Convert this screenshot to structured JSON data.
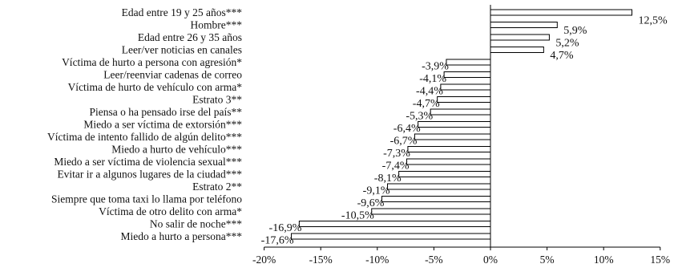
{
  "chart_data": {
    "type": "bar",
    "orientation": "horizontal",
    "categories": [
      "Edad entre 19 y 25 años***",
      "Hombre***",
      "Edad entre 26 y 35 años",
      "Leer/ver noticias en canales",
      "Víctima de hurto a persona con agresión*",
      "Leer/reenviar cadenas de correo",
      "Víctima de hurto de vehículo con arma*",
      "Estrato 3**",
      "Piensa o ha pensado irse del país**",
      "Miedo a ser víctima de extorsión***",
      "Víctima de intento fallido de algún delito***",
      "Miedo a hurto de vehículo***",
      "Miedo a ser víctima de violencia sexual***",
      "Evitar ir a algunos lugares de la ciudad***",
      "Estrato 2**",
      "Siempre que toma taxi lo llama por teléfono",
      "Víctima de otro delito con arma*",
      "No salir de noche***",
      "Miedo a hurto a persona***"
    ],
    "values": [
      12.5,
      5.9,
      5.2,
      4.7,
      -3.9,
      -4.1,
      -4.4,
      -4.7,
      -5.3,
      -6.4,
      -6.7,
      -7.3,
      -7.4,
      -8.1,
      -9.1,
      -9.6,
      -10.5,
      -16.9,
      -17.6
    ],
    "value_labels": [
      "12,5%",
      "5,9%",
      "5,2%",
      "4,7%",
      "-3,9%",
      "-4,1%",
      "-4,4%",
      "-4,7%",
      "-5,3%",
      "-6,4%",
      "-6,7%",
      "-7,3%",
      "-7,4%",
      "-8,1%",
      "-9,1%",
      "-9,6%",
      "-10,5%",
      "-16,9%",
      "-17,6%"
    ],
    "xlim": [
      -20,
      15
    ],
    "x_ticks": [
      -20,
      -15,
      -10,
      -5,
      0,
      5,
      10,
      15
    ],
    "x_tick_labels": [
      "-20%",
      "-15%",
      "-10%",
      "-5%",
      "0%",
      "5%",
      "10%",
      "15%"
    ],
    "grid": false,
    "bar_fill": "#ffffff",
    "bar_stroke": "#000000"
  }
}
